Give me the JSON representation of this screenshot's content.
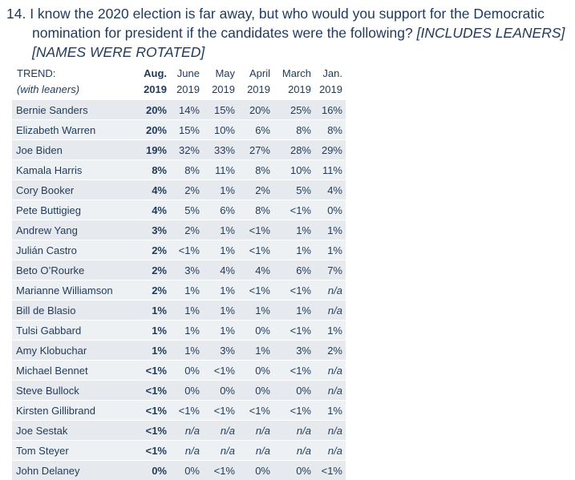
{
  "question": {
    "number": "14.",
    "line1": "I know the 2020 election is far away, but who would you support for the Democratic",
    "line2_text": "nomination for president if the candidates were the following? ",
    "line2_note": "[INCLUDES LEANERS]",
    "line3_note": "[NAMES WERE ROTATED]"
  },
  "table": {
    "header_top": [
      "TREND:",
      "Aug.",
      "June",
      "May",
      "April",
      "March",
      "Jan."
    ],
    "header_bottom": [
      "(with leaners)",
      "2019",
      "2019",
      "2019",
      "2019",
      "2019",
      "2019"
    ],
    "rows": [
      {
        "name": "Bernie Sanders",
        "values": [
          "20%",
          "14%",
          "15%",
          "20%",
          "25%",
          "16%"
        ]
      },
      {
        "name": "Elizabeth Warren",
        "values": [
          "20%",
          "15%",
          "10%",
          "6%",
          "8%",
          "8%"
        ]
      },
      {
        "name": "Joe Biden",
        "values": [
          "19%",
          "32%",
          "33%",
          "27%",
          "28%",
          "29%"
        ]
      },
      {
        "name": "Kamala Harris",
        "values": [
          "8%",
          "8%",
          "11%",
          "8%",
          "10%",
          "11%"
        ]
      },
      {
        "name": "Cory Booker",
        "values": [
          "4%",
          "2%",
          "1%",
          "2%",
          "5%",
          "4%"
        ]
      },
      {
        "name": "Pete Buttigieg",
        "values": [
          "4%",
          "5%",
          "6%",
          "8%",
          "<1%",
          "0%"
        ]
      },
      {
        "name": "Andrew Yang",
        "values": [
          "3%",
          "2%",
          "1%",
          "<1%",
          "1%",
          "1%"
        ]
      },
      {
        "name": "Julián Castro",
        "values": [
          "2%",
          "<1%",
          "1%",
          "<1%",
          "1%",
          "1%"
        ]
      },
      {
        "name": "Beto O’Rourke",
        "values": [
          "2%",
          "3%",
          "4%",
          "4%",
          "6%",
          "7%"
        ]
      },
      {
        "name": "Marianne Williamson",
        "values": [
          "2%",
          "1%",
          "1%",
          "<1%",
          "<1%",
          "n/a"
        ]
      },
      {
        "name": "Bill de Blasio",
        "values": [
          "1%",
          "1%",
          "1%",
          "1%",
          "1%",
          "n/a"
        ]
      },
      {
        "name": "Tulsi Gabbard",
        "values": [
          "1%",
          "1%",
          "1%",
          "0%",
          "<1%",
          "1%"
        ]
      },
      {
        "name": "Amy Klobuchar",
        "values": [
          "1%",
          "1%",
          "3%",
          "1%",
          "3%",
          "2%"
        ]
      },
      {
        "name": "Michael Bennet",
        "values": [
          "<1%",
          "0%",
          "<1%",
          "0%",
          "<1%",
          "n/a"
        ]
      },
      {
        "name": "Steve Bullock",
        "values": [
          "<1%",
          "0%",
          "0%",
          "0%",
          "0%",
          "n/a"
        ]
      },
      {
        "name": "Kirsten Gillibrand",
        "values": [
          "<1%",
          "<1%",
          "<1%",
          "<1%",
          "<1%",
          "1%"
        ]
      },
      {
        "name": "Joe Sestak",
        "values": [
          "<1%",
          "n/a",
          "n/a",
          "n/a",
          "n/a",
          "n/a"
        ]
      },
      {
        "name": "Tom Steyer",
        "values": [
          "<1%",
          "n/a",
          "n/a",
          "n/a",
          "n/a",
          "n/a"
        ]
      },
      {
        "name": "John Delaney",
        "values": [
          "0%",
          "0%",
          "<1%",
          "0%",
          "0%",
          "<1%"
        ]
      }
    ]
  },
  "colors": {
    "text": "#1f3a5a",
    "row_band_a": "#e6eaee",
    "row_band_b": "#eef1f4"
  }
}
